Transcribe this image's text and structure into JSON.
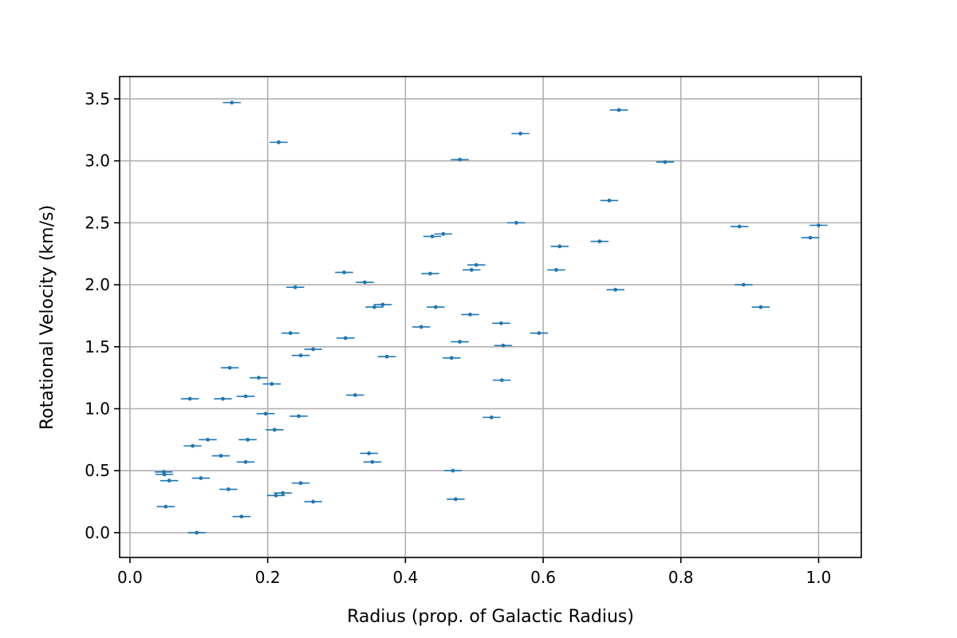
{
  "chart_data": {
    "type": "scatter",
    "title": "",
    "xlabel": "Radius (prop. of Galactic Radius)",
    "ylabel": "Rotational Velocity (km/s)",
    "xlim": [
      -0.015,
      1.062
    ],
    "ylim": [
      -0.2,
      3.68
    ],
    "x_ticks": [
      0.0,
      0.2,
      0.4,
      0.6,
      0.8,
      1.0
    ],
    "x_tick_labels": [
      "0.0",
      "0.2",
      "0.4",
      "0.6",
      "0.8",
      "1.0"
    ],
    "y_ticks": [
      0.0,
      0.5,
      1.0,
      1.5,
      2.0,
      2.5,
      3.0,
      3.5
    ],
    "y_tick_labels": [
      "0.0",
      "0.5",
      "1.0",
      "1.5",
      "2.0",
      "2.5",
      "3.0",
      "3.5"
    ],
    "grid": true,
    "legend": "none",
    "marker_color": "#1f77b4",
    "x_error": 0.013,
    "points": [
      {
        "x": 0.148,
        "y": 3.47
      },
      {
        "x": 0.216,
        "y": 3.15
      },
      {
        "x": 0.71,
        "y": 3.41
      },
      {
        "x": 0.567,
        "y": 3.22
      },
      {
        "x": 0.479,
        "y": 3.01
      },
      {
        "x": 0.777,
        "y": 2.99
      },
      {
        "x": 0.696,
        "y": 2.68
      },
      {
        "x": 0.561,
        "y": 2.5
      },
      {
        "x": 0.885,
        "y": 2.47
      },
      {
        "x": 1.0,
        "y": 2.48
      },
      {
        "x": 0.988,
        "y": 2.38
      },
      {
        "x": 0.455,
        "y": 2.41
      },
      {
        "x": 0.439,
        "y": 2.39
      },
      {
        "x": 0.624,
        "y": 2.31
      },
      {
        "x": 0.682,
        "y": 2.35
      },
      {
        "x": 0.503,
        "y": 2.16
      },
      {
        "x": 0.496,
        "y": 2.12
      },
      {
        "x": 0.619,
        "y": 2.12
      },
      {
        "x": 0.311,
        "y": 2.1
      },
      {
        "x": 0.436,
        "y": 2.09
      },
      {
        "x": 0.341,
        "y": 2.02
      },
      {
        "x": 0.24,
        "y": 1.98
      },
      {
        "x": 0.891,
        "y": 2.0
      },
      {
        "x": 0.705,
        "y": 1.96
      },
      {
        "x": 0.367,
        "y": 1.84
      },
      {
        "x": 0.355,
        "y": 1.82
      },
      {
        "x": 0.444,
        "y": 1.82
      },
      {
        "x": 0.916,
        "y": 1.82
      },
      {
        "x": 0.494,
        "y": 1.76
      },
      {
        "x": 0.539,
        "y": 1.69
      },
      {
        "x": 0.423,
        "y": 1.66
      },
      {
        "x": 0.594,
        "y": 1.61
      },
      {
        "x": 0.233,
        "y": 1.61
      },
      {
        "x": 0.313,
        "y": 1.57
      },
      {
        "x": 0.479,
        "y": 1.54
      },
      {
        "x": 0.542,
        "y": 1.51
      },
      {
        "x": 0.266,
        "y": 1.48
      },
      {
        "x": 0.248,
        "y": 1.43
      },
      {
        "x": 0.373,
        "y": 1.42
      },
      {
        "x": 0.467,
        "y": 1.41
      },
      {
        "x": 0.145,
        "y": 1.33
      },
      {
        "x": 0.187,
        "y": 1.25
      },
      {
        "x": 0.54,
        "y": 1.23
      },
      {
        "x": 0.206,
        "y": 1.2
      },
      {
        "x": 0.327,
        "y": 1.11
      },
      {
        "x": 0.168,
        "y": 1.1
      },
      {
        "x": 0.087,
        "y": 1.08
      },
      {
        "x": 0.135,
        "y": 1.08
      },
      {
        "x": 0.197,
        "y": 0.96
      },
      {
        "x": 0.245,
        "y": 0.94
      },
      {
        "x": 0.525,
        "y": 0.93
      },
      {
        "x": 0.21,
        "y": 0.83
      },
      {
        "x": 0.113,
        "y": 0.75
      },
      {
        "x": 0.171,
        "y": 0.75
      },
      {
        "x": 0.091,
        "y": 0.7
      },
      {
        "x": 0.347,
        "y": 0.64
      },
      {
        "x": 0.132,
        "y": 0.62
      },
      {
        "x": 0.168,
        "y": 0.57
      },
      {
        "x": 0.352,
        "y": 0.57
      },
      {
        "x": 0.469,
        "y": 0.5
      },
      {
        "x": 0.049,
        "y": 0.49
      },
      {
        "x": 0.05,
        "y": 0.47
      },
      {
        "x": 0.057,
        "y": 0.42
      },
      {
        "x": 0.103,
        "y": 0.44
      },
      {
        "x": 0.248,
        "y": 0.4
      },
      {
        "x": 0.143,
        "y": 0.35
      },
      {
        "x": 0.222,
        "y": 0.32
      },
      {
        "x": 0.212,
        "y": 0.3
      },
      {
        "x": 0.473,
        "y": 0.27
      },
      {
        "x": 0.266,
        "y": 0.25
      },
      {
        "x": 0.052,
        "y": 0.21
      },
      {
        "x": 0.162,
        "y": 0.13
      },
      {
        "x": 0.097,
        "y": 0.0
      }
    ]
  }
}
